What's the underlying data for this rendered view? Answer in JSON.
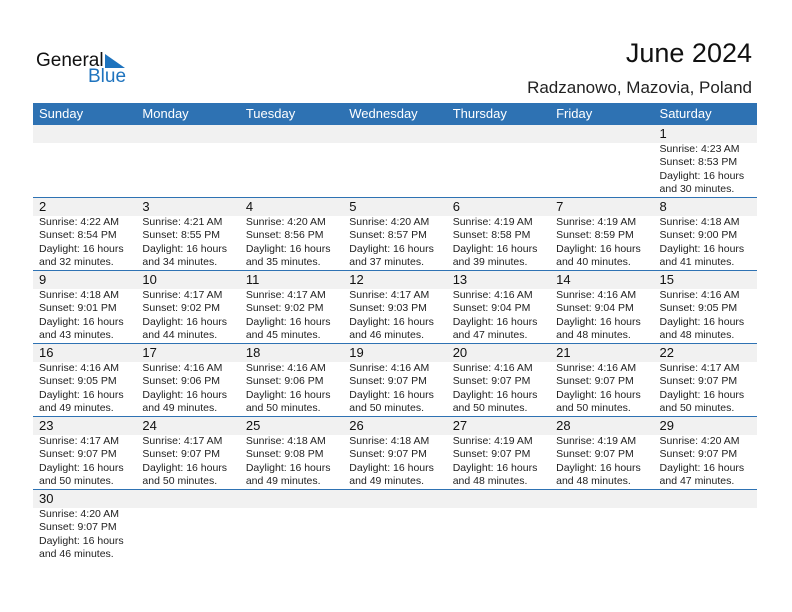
{
  "logo": {
    "text1": "General",
    "text2": "Blue"
  },
  "header": {
    "title": "June 2024",
    "location": "Radzanowo, Mazovia, Poland"
  },
  "colors": {
    "accent": "#2e72b3",
    "band": "#f1f1f1"
  },
  "weekdays": [
    "Sunday",
    "Monday",
    "Tuesday",
    "Wednesday",
    "Thursday",
    "Friday",
    "Saturday"
  ],
  "weeks": [
    [
      null,
      null,
      null,
      null,
      null,
      null,
      {
        "day": "1",
        "sunrise": "Sunrise: 4:23 AM",
        "sunset": "Sunset: 8:53 PM",
        "daylight": "Daylight: 16 hours",
        "minutes": "and 30 minutes."
      }
    ],
    [
      {
        "day": "2",
        "sunrise": "Sunrise: 4:22 AM",
        "sunset": "Sunset: 8:54 PM",
        "daylight": "Daylight: 16 hours",
        "minutes": "and 32 minutes."
      },
      {
        "day": "3",
        "sunrise": "Sunrise: 4:21 AM",
        "sunset": "Sunset: 8:55 PM",
        "daylight": "Daylight: 16 hours",
        "minutes": "and 34 minutes."
      },
      {
        "day": "4",
        "sunrise": "Sunrise: 4:20 AM",
        "sunset": "Sunset: 8:56 PM",
        "daylight": "Daylight: 16 hours",
        "minutes": "and 35 minutes."
      },
      {
        "day": "5",
        "sunrise": "Sunrise: 4:20 AM",
        "sunset": "Sunset: 8:57 PM",
        "daylight": "Daylight: 16 hours",
        "minutes": "and 37 minutes."
      },
      {
        "day": "6",
        "sunrise": "Sunrise: 4:19 AM",
        "sunset": "Sunset: 8:58 PM",
        "daylight": "Daylight: 16 hours",
        "minutes": "and 39 minutes."
      },
      {
        "day": "7",
        "sunrise": "Sunrise: 4:19 AM",
        "sunset": "Sunset: 8:59 PM",
        "daylight": "Daylight: 16 hours",
        "minutes": "and 40 minutes."
      },
      {
        "day": "8",
        "sunrise": "Sunrise: 4:18 AM",
        "sunset": "Sunset: 9:00 PM",
        "daylight": "Daylight: 16 hours",
        "minutes": "and 41 minutes."
      }
    ],
    [
      {
        "day": "9",
        "sunrise": "Sunrise: 4:18 AM",
        "sunset": "Sunset: 9:01 PM",
        "daylight": "Daylight: 16 hours",
        "minutes": "and 43 minutes."
      },
      {
        "day": "10",
        "sunrise": "Sunrise: 4:17 AM",
        "sunset": "Sunset: 9:02 PM",
        "daylight": "Daylight: 16 hours",
        "minutes": "and 44 minutes."
      },
      {
        "day": "11",
        "sunrise": "Sunrise: 4:17 AM",
        "sunset": "Sunset: 9:02 PM",
        "daylight": "Daylight: 16 hours",
        "minutes": "and 45 minutes."
      },
      {
        "day": "12",
        "sunrise": "Sunrise: 4:17 AM",
        "sunset": "Sunset: 9:03 PM",
        "daylight": "Daylight: 16 hours",
        "minutes": "and 46 minutes."
      },
      {
        "day": "13",
        "sunrise": "Sunrise: 4:16 AM",
        "sunset": "Sunset: 9:04 PM",
        "daylight": "Daylight: 16 hours",
        "minutes": "and 47 minutes."
      },
      {
        "day": "14",
        "sunrise": "Sunrise: 4:16 AM",
        "sunset": "Sunset: 9:04 PM",
        "daylight": "Daylight: 16 hours",
        "minutes": "and 48 minutes."
      },
      {
        "day": "15",
        "sunrise": "Sunrise: 4:16 AM",
        "sunset": "Sunset: 9:05 PM",
        "daylight": "Daylight: 16 hours",
        "minutes": "and 48 minutes."
      }
    ],
    [
      {
        "day": "16",
        "sunrise": "Sunrise: 4:16 AM",
        "sunset": "Sunset: 9:05 PM",
        "daylight": "Daylight: 16 hours",
        "minutes": "and 49 minutes."
      },
      {
        "day": "17",
        "sunrise": "Sunrise: 4:16 AM",
        "sunset": "Sunset: 9:06 PM",
        "daylight": "Daylight: 16 hours",
        "minutes": "and 49 minutes."
      },
      {
        "day": "18",
        "sunrise": "Sunrise: 4:16 AM",
        "sunset": "Sunset: 9:06 PM",
        "daylight": "Daylight: 16 hours",
        "minutes": "and 50 minutes."
      },
      {
        "day": "19",
        "sunrise": "Sunrise: 4:16 AM",
        "sunset": "Sunset: 9:07 PM",
        "daylight": "Daylight: 16 hours",
        "minutes": "and 50 minutes."
      },
      {
        "day": "20",
        "sunrise": "Sunrise: 4:16 AM",
        "sunset": "Sunset: 9:07 PM",
        "daylight": "Daylight: 16 hours",
        "minutes": "and 50 minutes."
      },
      {
        "day": "21",
        "sunrise": "Sunrise: 4:16 AM",
        "sunset": "Sunset: 9:07 PM",
        "daylight": "Daylight: 16 hours",
        "minutes": "and 50 minutes."
      },
      {
        "day": "22",
        "sunrise": "Sunrise: 4:17 AM",
        "sunset": "Sunset: 9:07 PM",
        "daylight": "Daylight: 16 hours",
        "minutes": "and 50 minutes."
      }
    ],
    [
      {
        "day": "23",
        "sunrise": "Sunrise: 4:17 AM",
        "sunset": "Sunset: 9:07 PM",
        "daylight": "Daylight: 16 hours",
        "minutes": "and 50 minutes."
      },
      {
        "day": "24",
        "sunrise": "Sunrise: 4:17 AM",
        "sunset": "Sunset: 9:07 PM",
        "daylight": "Daylight: 16 hours",
        "minutes": "and 50 minutes."
      },
      {
        "day": "25",
        "sunrise": "Sunrise: 4:18 AM",
        "sunset": "Sunset: 9:08 PM",
        "daylight": "Daylight: 16 hours",
        "minutes": "and 49 minutes."
      },
      {
        "day": "26",
        "sunrise": "Sunrise: 4:18 AM",
        "sunset": "Sunset: 9:07 PM",
        "daylight": "Daylight: 16 hours",
        "minutes": "and 49 minutes."
      },
      {
        "day": "27",
        "sunrise": "Sunrise: 4:19 AM",
        "sunset": "Sunset: 9:07 PM",
        "daylight": "Daylight: 16 hours",
        "minutes": "and 48 minutes."
      },
      {
        "day": "28",
        "sunrise": "Sunrise: 4:19 AM",
        "sunset": "Sunset: 9:07 PM",
        "daylight": "Daylight: 16 hours",
        "minutes": "and 48 minutes."
      },
      {
        "day": "29",
        "sunrise": "Sunrise: 4:20 AM",
        "sunset": "Sunset: 9:07 PM",
        "daylight": "Daylight: 16 hours",
        "minutes": "and 47 minutes."
      }
    ],
    [
      {
        "day": "30",
        "sunrise": "Sunrise: 4:20 AM",
        "sunset": "Sunset: 9:07 PM",
        "daylight": "Daylight: 16 hours",
        "minutes": "and 46 minutes."
      },
      null,
      null,
      null,
      null,
      null,
      null
    ]
  ]
}
